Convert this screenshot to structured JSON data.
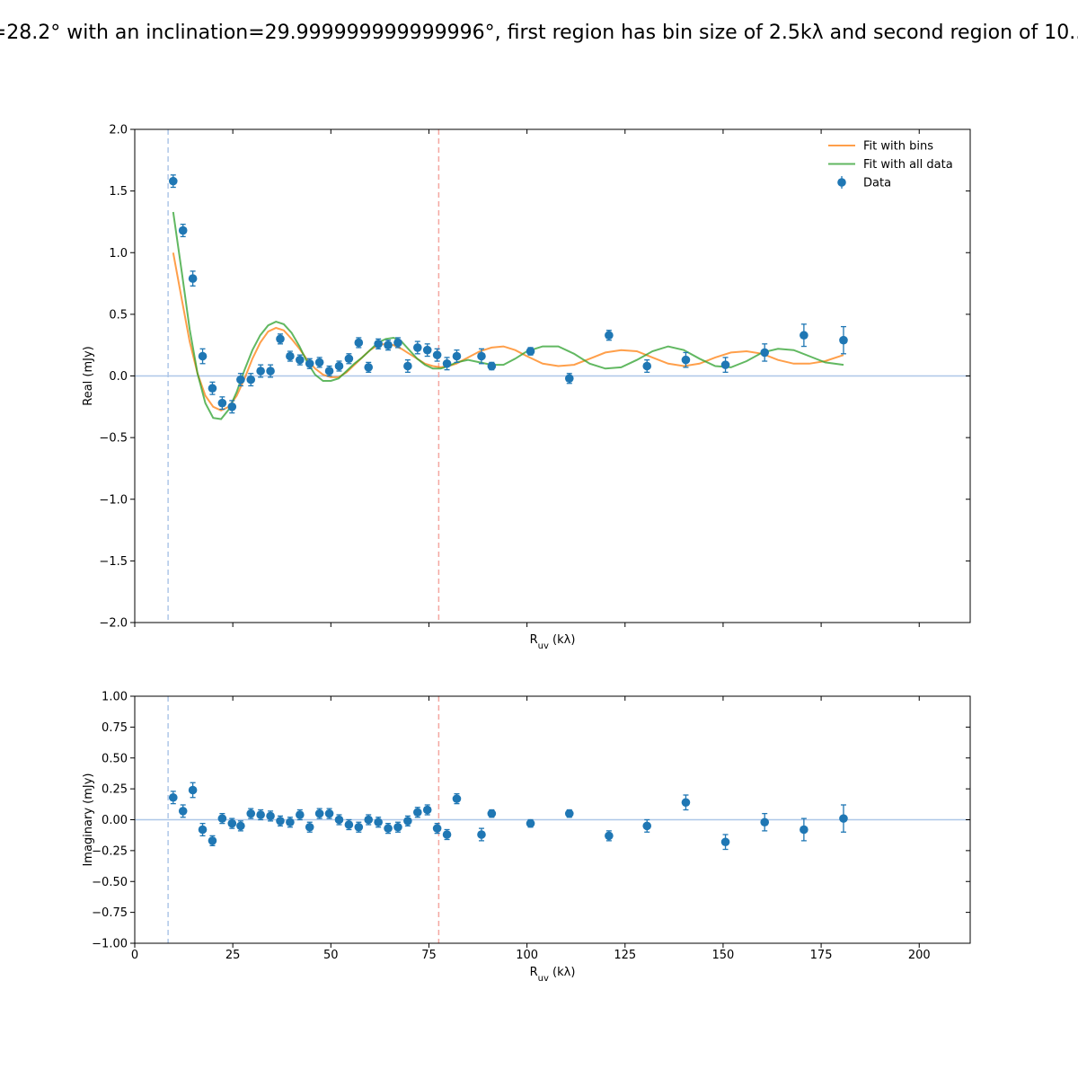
{
  "figure": {
    "title": "=28.2° with an inclination=29.999999999999996°, first region has bin size of 2.5kλ and second region of 10..."
  },
  "colors": {
    "data": "#1f77b4",
    "fit_bins": "#ff7f0e",
    "fit_all": "#2ca02c",
    "zero_line": "#aec7e8",
    "vline_left": "#aec7e8",
    "vline_right": "#f4a6a0"
  },
  "chart_data": [
    {
      "type": "scatter",
      "panel": "real",
      "xlabel": "R_uv (kλ)",
      "ylabel": "Real (mJy)",
      "xlim": [
        0,
        213
      ],
      "ylim": [
        -2.0,
        2.0
      ],
      "yticks": [
        -2.0,
        -1.5,
        -1.0,
        -0.5,
        0.0,
        0.5,
        1.0,
        1.5,
        2.0
      ],
      "ytick_labels": [
        "−2.0",
        "−1.5",
        "−1.0",
        "−0.5",
        "0.0",
        "0.5",
        "1.0",
        "1.5",
        "2.0"
      ],
      "xticks": [
        0,
        25,
        50,
        75,
        100,
        125,
        150,
        175,
        200
      ],
      "show_xtick_labels": false,
      "vlines": [
        8.5,
        77.5
      ],
      "hline": 0,
      "legend": {
        "position": "top-right",
        "entries": [
          {
            "label": "Fit with bins",
            "kind": "line",
            "color_key": "fit_bins"
          },
          {
            "label": "Fit with all data",
            "kind": "line",
            "color_key": "fit_all"
          },
          {
            "label": "Data",
            "kind": "marker",
            "color_key": "data"
          }
        ]
      },
      "series": [
        {
          "name": "Data",
          "kind": "errorbar",
          "x": [
            9.8,
            12.3,
            14.8,
            17.3,
            19.8,
            22.3,
            24.8,
            27.0,
            29.6,
            32.1,
            34.6,
            37.1,
            39.6,
            42.1,
            44.6,
            47.1,
            49.6,
            52.1,
            54.6,
            57.1,
            59.6,
            62.1,
            64.6,
            67.1,
            69.6,
            72.1,
            74.6,
            77.1,
            79.6,
            82.1,
            88.4,
            91.0,
            100.9,
            110.8,
            120.9,
            130.6,
            140.5,
            150.6,
            160.6,
            170.6,
            180.7
          ],
          "y": [
            1.58,
            1.18,
            0.79,
            0.16,
            -0.1,
            -0.22,
            -0.25,
            -0.03,
            -0.03,
            0.04,
            0.04,
            0.3,
            0.16,
            0.13,
            0.1,
            0.11,
            0.04,
            0.08,
            0.14,
            0.27,
            0.07,
            0.26,
            0.25,
            0.27,
            0.08,
            0.23,
            0.21,
            0.17,
            0.1,
            0.16,
            0.16,
            0.08,
            0.2,
            -0.02,
            0.33,
            0.08,
            0.13,
            0.09,
            0.19,
            0.33,
            0.29
          ],
          "err": [
            0.05,
            0.05,
            0.06,
            0.06,
            0.05,
            0.05,
            0.05,
            0.05,
            0.05,
            0.05,
            0.05,
            0.04,
            0.04,
            0.04,
            0.04,
            0.04,
            0.04,
            0.04,
            0.04,
            0.04,
            0.04,
            0.04,
            0.04,
            0.04,
            0.05,
            0.05,
            0.05,
            0.05,
            0.05,
            0.05,
            0.06,
            0.03,
            0.03,
            0.04,
            0.04,
            0.05,
            0.06,
            0.06,
            0.07,
            0.09,
            0.11
          ]
        },
        {
          "name": "Fit with bins",
          "kind": "line",
          "x": [
            9.8,
            12,
            14,
            16,
            18,
            20,
            22,
            24,
            26,
            28,
            30,
            32,
            34,
            36,
            38,
            40,
            42,
            44,
            46,
            48,
            50,
            52,
            54,
            56,
            58,
            60,
            62,
            64,
            66,
            68,
            70,
            72,
            74,
            76,
            78,
            80,
            82,
            85,
            88,
            91,
            94,
            97,
            100,
            104,
            108,
            112,
            116,
            120,
            124,
            128,
            132,
            136,
            140,
            144,
            148,
            152,
            156,
            160,
            164,
            168,
            172,
            176,
            180.7
          ],
          "y": [
            1.0,
            0.62,
            0.28,
            0.02,
            -0.16,
            -0.25,
            -0.28,
            -0.25,
            -0.16,
            -0.02,
            0.14,
            0.27,
            0.36,
            0.39,
            0.37,
            0.3,
            0.22,
            0.13,
            0.06,
            0.01,
            -0.01,
            -0.01,
            0.03,
            0.09,
            0.15,
            0.21,
            0.25,
            0.26,
            0.25,
            0.22,
            0.18,
            0.14,
            0.1,
            0.08,
            0.07,
            0.08,
            0.1,
            0.15,
            0.2,
            0.23,
            0.24,
            0.21,
            0.16,
            0.1,
            0.08,
            0.09,
            0.14,
            0.19,
            0.21,
            0.2,
            0.15,
            0.1,
            0.08,
            0.1,
            0.15,
            0.19,
            0.2,
            0.18,
            0.13,
            0.1,
            0.1,
            0.12,
            0.17
          ]
        },
        {
          "name": "Fit with all data",
          "kind": "line",
          "x": [
            9.8,
            12,
            14,
            16,
            18,
            20,
            22,
            24,
            26,
            28,
            30,
            32,
            34,
            36,
            38,
            40,
            42,
            44,
            46,
            48,
            50,
            52,
            54,
            56,
            58,
            60,
            62,
            64,
            66,
            68,
            70,
            72,
            74,
            76,
            78,
            80,
            82,
            85,
            88,
            91,
            94,
            97,
            100,
            104,
            108,
            112,
            116,
            120,
            124,
            128,
            132,
            136,
            140,
            144,
            148,
            152,
            156,
            160,
            164,
            168,
            172,
            176,
            180.7
          ],
          "y": [
            1.33,
            0.84,
            0.38,
            0.02,
            -0.22,
            -0.34,
            -0.35,
            -0.27,
            -0.13,
            0.05,
            0.21,
            0.33,
            0.41,
            0.44,
            0.42,
            0.35,
            0.24,
            0.11,
            0.01,
            -0.04,
            -0.04,
            -0.02,
            0.04,
            0.1,
            0.15,
            0.21,
            0.27,
            0.3,
            0.31,
            0.28,
            0.21,
            0.14,
            0.09,
            0.06,
            0.06,
            0.08,
            0.11,
            0.13,
            0.11,
            0.09,
            0.09,
            0.14,
            0.2,
            0.24,
            0.24,
            0.18,
            0.1,
            0.06,
            0.07,
            0.13,
            0.2,
            0.24,
            0.21,
            0.14,
            0.08,
            0.07,
            0.12,
            0.19,
            0.22,
            0.21,
            0.16,
            0.11,
            0.09
          ]
        }
      ]
    },
    {
      "type": "scatter",
      "panel": "imaginary",
      "xlabel": "R_uv (kλ)",
      "ylabel": "Imaginary (mJy)",
      "xlim": [
        0,
        213
      ],
      "ylim": [
        -1.0,
        1.0
      ],
      "yticks": [
        -1.0,
        -0.75,
        -0.5,
        -0.25,
        0.0,
        0.25,
        0.5,
        0.75,
        1.0
      ],
      "ytick_labels": [
        "−1.00",
        "−0.75",
        "−0.50",
        "−0.25",
        "0.00",
        "0.25",
        "0.50",
        "0.75",
        "1.00"
      ],
      "xticks": [
        0,
        25,
        50,
        75,
        100,
        125,
        150,
        175,
        200
      ],
      "xtick_labels": [
        "0",
        "25",
        "50",
        "75",
        "100",
        "125",
        "150",
        "175",
        "200"
      ],
      "show_xtick_labels": true,
      "vlines": [
        8.5,
        77.5
      ],
      "hline": 0,
      "series": [
        {
          "name": "Data",
          "kind": "errorbar",
          "x": [
            9.8,
            12.3,
            14.8,
            17.3,
            19.8,
            22.3,
            24.8,
            27.0,
            29.6,
            32.1,
            34.6,
            37.1,
            39.6,
            42.1,
            44.6,
            47.1,
            49.6,
            52.1,
            54.6,
            57.1,
            59.6,
            62.1,
            64.6,
            67.1,
            69.6,
            72.1,
            74.6,
            77.1,
            79.6,
            82.1,
            88.4,
            91.0,
            100.9,
            110.8,
            120.9,
            130.6,
            140.5,
            150.6,
            160.6,
            170.6,
            180.7
          ],
          "y": [
            0.18,
            0.07,
            0.24,
            -0.08,
            -0.17,
            0.01,
            -0.03,
            -0.05,
            0.05,
            0.04,
            0.03,
            -0.01,
            -0.02,
            0.04,
            -0.06,
            0.05,
            0.05,
            0.0,
            -0.04,
            -0.06,
            0.0,
            -0.02,
            -0.07,
            -0.06,
            -0.01,
            0.06,
            0.08,
            -0.07,
            -0.12,
            0.17,
            -0.12,
            0.05,
            -0.03,
            0.05,
            -0.13,
            -0.05,
            0.14,
            -0.18,
            -0.02,
            -0.08,
            0.01
          ],
          "err": [
            0.05,
            0.05,
            0.06,
            0.05,
            0.04,
            0.04,
            0.04,
            0.04,
            0.04,
            0.04,
            0.04,
            0.04,
            0.04,
            0.04,
            0.04,
            0.04,
            0.04,
            0.04,
            0.04,
            0.04,
            0.04,
            0.04,
            0.04,
            0.04,
            0.04,
            0.04,
            0.04,
            0.04,
            0.04,
            0.04,
            0.05,
            0.03,
            0.03,
            0.03,
            0.04,
            0.05,
            0.06,
            0.06,
            0.07,
            0.09,
            0.11
          ]
        }
      ]
    }
  ]
}
